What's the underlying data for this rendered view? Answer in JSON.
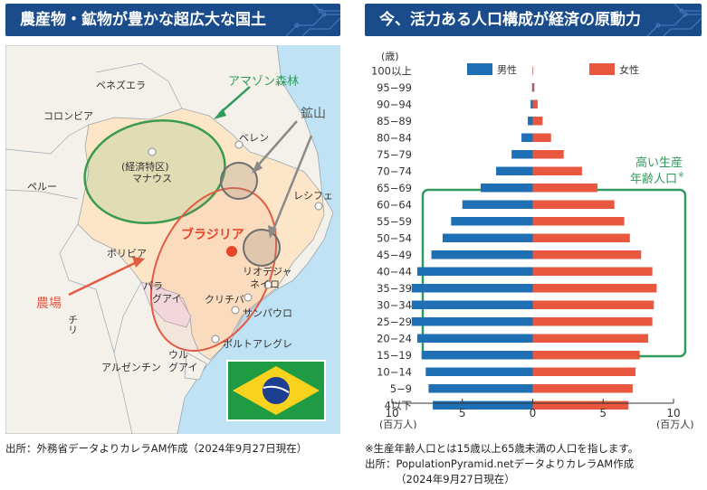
{
  "left_panel": {
    "title": "農産物・鉱物が豊かな超広大な国土",
    "map_labels": {
      "amazon": "アマゾン森林",
      "mine": "鉱山",
      "farm": "農場",
      "brasilia": "ブラジリア",
      "venezuela": "ベネズエラ",
      "colombia": "コロンビア",
      "peru": "ペルー",
      "bolivia": "ボリビア",
      "chile": "チリ",
      "argentina": "アルゼンチン",
      "paraguay_1": "パラ",
      "paraguay_2": "グアイ",
      "uruguay_1": "ウル",
      "uruguay_2": "グアイ",
      "manaus_1": "(経済特区)",
      "manaus_2": "マナウス",
      "belem": "ベレン",
      "recife": "レシフェ",
      "rio_1": "リオデジャ",
      "rio_2": "ネイロ",
      "curitiba": "クリチバ",
      "sao_paulo": "サンパウロ",
      "porto_alegre": "ポルトアレグレ"
    },
    "source": "出所：外務省データよりカレラAM作成（2024年9月27日現在）"
  },
  "right_panel": {
    "title": "今、活力ある人口構成が経済の原動力",
    "annotation_line1": "高い生産",
    "annotation_line2": "年齢人口",
    "annotation_mark": "※",
    "footnote": "※生産年齢人口とは15歳以上65歳未満の人口を指します。",
    "source_line1": "出所：PopulationPyramid.netデータよりカレラAM作成",
    "source_line2": "（2024年9月27日現在）"
  },
  "chart_data": {
    "type": "bar",
    "orientation": "horizontal-population-pyramid",
    "y_unit_label": "(歳)",
    "x_unit_left": "(百万人)",
    "x_unit_right": "(百万人)",
    "xlim": [
      -10,
      10
    ],
    "x_tick_labels": [
      "10",
      "5",
      "0",
      "5",
      "10"
    ],
    "categories": [
      "100以上",
      "95−99",
      "90−94",
      "85−89",
      "80−84",
      "75−79",
      "70−74",
      "65−69",
      "60−64",
      "55−59",
      "50−54",
      "45−49",
      "40−44",
      "35−39",
      "30−34",
      "25−29",
      "20−24",
      "15−19",
      "10−14",
      "5−9",
      "4以下"
    ],
    "series": [
      {
        "name": "男性",
        "color": "#1f6fb5",
        "values": [
          0.01,
          0.05,
          0.15,
          0.35,
          0.8,
          1.5,
          2.6,
          3.7,
          5.0,
          5.8,
          6.4,
          7.2,
          8.2,
          8.6,
          8.6,
          8.6,
          8.2,
          7.9,
          7.6,
          7.4,
          7.1
        ]
      },
      {
        "name": "女性",
        "color": "#e9573f",
        "values": [
          0.03,
          0.12,
          0.35,
          0.7,
          1.3,
          2.2,
          3.5,
          4.6,
          5.8,
          6.5,
          6.9,
          7.7,
          8.5,
          8.8,
          8.6,
          8.5,
          8.2,
          7.6,
          7.3,
          7.1,
          6.8
        ]
      }
    ],
    "highlight_range": [
      "60−64",
      "15−19"
    ],
    "grid": false,
    "legend_position": "top"
  },
  "colors": {
    "banner": "#1a4c8c",
    "male": "#1f6fb5",
    "female": "#e9573f",
    "highlight": "#2e9b5c",
    "brasilia_dot": "#e8442a",
    "amazon": "#3a9a4e",
    "mine": "#8a8a8a",
    "farm": "#e25b45"
  }
}
